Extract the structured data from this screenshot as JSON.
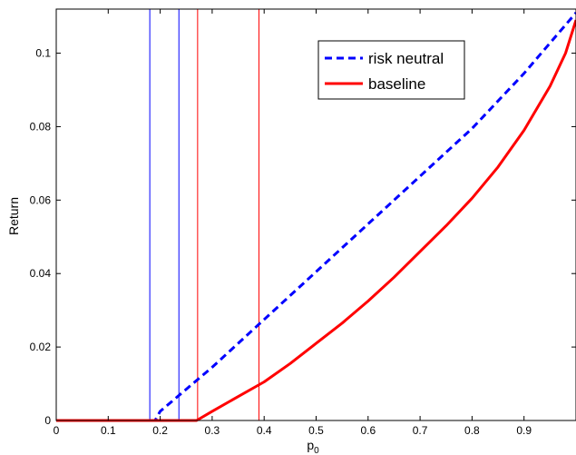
{
  "chart_data": {
    "type": "line",
    "title": "",
    "xlabel": "p",
    "xlabel_subscript": "0",
    "ylabel": "Return",
    "xlim": [
      0,
      1
    ],
    "ylim": [
      0,
      0.112
    ],
    "xticks": [
      0,
      0.1,
      0.2,
      0.3,
      0.4,
      0.5,
      0.6,
      0.7,
      0.8,
      0.9
    ],
    "xtick_labels": [
      "0",
      "0.1",
      "0.2",
      "0.3",
      "0.4",
      "0.5",
      "0.6",
      "0.7",
      "0.8",
      "0.9"
    ],
    "yticks": [
      0,
      0.02,
      0.04,
      0.06,
      0.08,
      0.1
    ],
    "ytick_labels": [
      "0",
      "0.02",
      "0.04",
      "0.06",
      "0.08",
      "0.1"
    ],
    "grid": false,
    "legend_position": "top-right",
    "series": [
      {
        "name": "risk neutral",
        "color": "#0000ff",
        "style": "dashed",
        "x": [
          0,
          0.18,
          0.19,
          0.2,
          0.25,
          0.3,
          0.35,
          0.4,
          0.5,
          0.6,
          0.7,
          0.8,
          0.9,
          1.0
        ],
        "y": [
          0,
          0,
          0,
          0.0025,
          0.0085,
          0.0145,
          0.021,
          0.0275,
          0.0405,
          0.0535,
          0.0665,
          0.0795,
          0.0945,
          0.111
        ]
      },
      {
        "name": "baseline",
        "color": "#ff0000",
        "style": "solid",
        "x": [
          0,
          0.27,
          0.3,
          0.35,
          0.4,
          0.45,
          0.5,
          0.55,
          0.6,
          0.65,
          0.7,
          0.75,
          0.8,
          0.85,
          0.9,
          0.95,
          0.98,
          1.0
        ],
        "y": [
          0,
          0,
          0.0025,
          0.0065,
          0.0105,
          0.0155,
          0.021,
          0.0265,
          0.0325,
          0.039,
          0.046,
          0.053,
          0.0605,
          0.069,
          0.079,
          0.091,
          0.1,
          0.109
        ]
      }
    ],
    "vlines": [
      {
        "x": 0.18,
        "color": "#0000ff"
      },
      {
        "x": 0.236,
        "color": "#0000ff"
      },
      {
        "x": 0.272,
        "color": "#ff0000"
      },
      {
        "x": 0.39,
        "color": "#ff0000"
      }
    ]
  }
}
